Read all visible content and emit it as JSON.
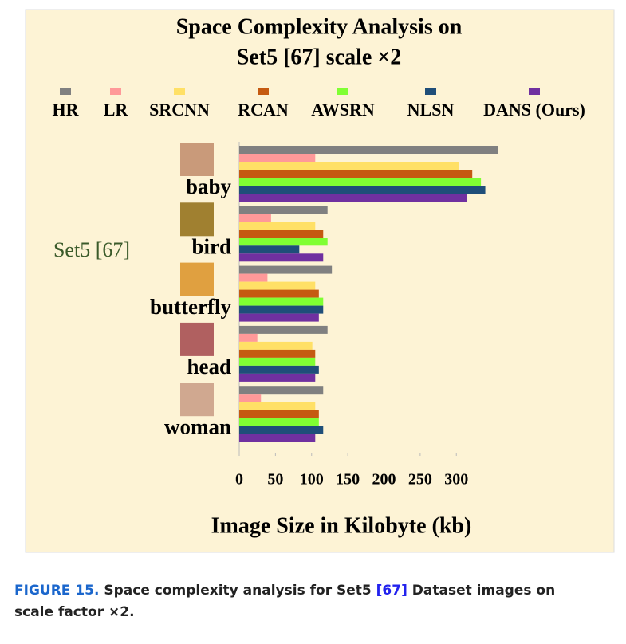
{
  "chart_data": {
    "type": "bar",
    "orientation": "horizontal",
    "title": "Space Complexity Analysis on",
    "subtitle": "Set5 [67] scale ×2",
    "annotation": "Set5 [67]",
    "x_label": "Image Size in Kilobyte (kb)",
    "categories": [
      "baby",
      "bird",
      "butterfly",
      "head",
      "woman"
    ],
    "series": [
      {
        "name": "HR",
        "color": "#808080",
        "values": [
          358,
          122,
          128,
          122,
          116
        ]
      },
      {
        "name": "LR",
        "color": "#ff9999",
        "values": [
          105,
          44,
          39,
          25,
          30
        ]
      },
      {
        "name": "SRCNN",
        "color": "#ffe066",
        "values": [
          303,
          105,
          105,
          101,
          105
        ]
      },
      {
        "name": "RCAN",
        "color": "#c55a11",
        "values": [
          322,
          116,
          110,
          105,
          110
        ]
      },
      {
        "name": "AWSRN",
        "color": "#80ff33",
        "values": [
          334,
          122,
          116,
          105,
          110
        ]
      },
      {
        "name": "NLSN",
        "color": "#1f4e79",
        "values": [
          340,
          83,
          116,
          110,
          116
        ]
      },
      {
        "name": "DANS (Ours)",
        "color": "#7030a0",
        "values": [
          315,
          116,
          110,
          105,
          105
        ]
      }
    ],
    "xlim": [
      0,
      400
    ],
    "xticks": [
      0,
      50,
      100,
      150,
      200,
      250,
      300
    ],
    "grid": false
  },
  "caption": {
    "label": "FIGURE 15.",
    "text": "Space complexity analysis for Set5",
    "ref": "[67]",
    "text2": "Dataset images on",
    "text3": "scale factor ×2."
  }
}
